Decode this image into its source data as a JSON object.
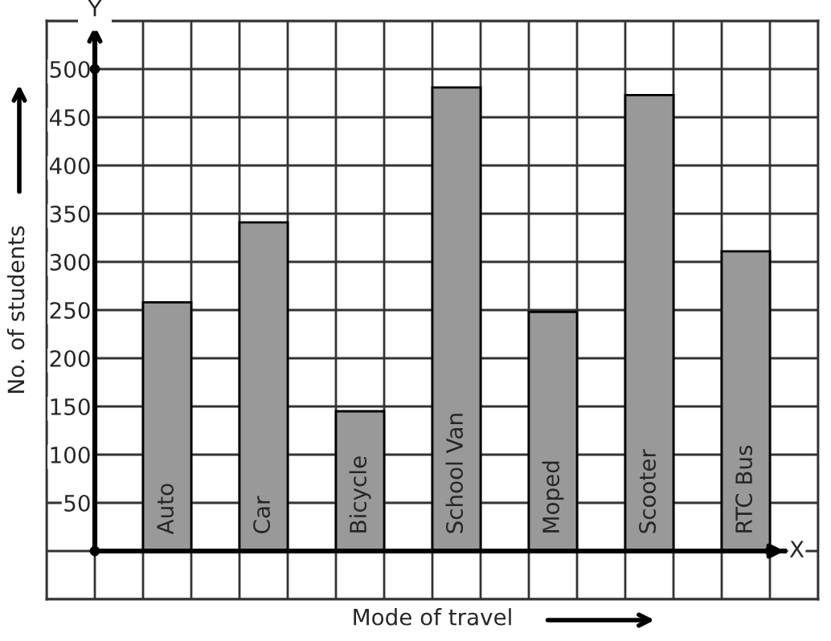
{
  "chart_data": {
    "type": "bar",
    "xlabel": "Mode of travel",
    "ylabel": "No. of students",
    "categories": [
      "Auto",
      "Car",
      "Bicycle",
      "School Van",
      "Moped",
      "Scooter",
      "RTC Bus"
    ],
    "values": [
      258,
      341,
      145,
      481,
      248,
      473,
      311
    ],
    "color": "#999999",
    "ylim": [
      -50,
      550
    ],
    "yticks": [
      {
        "value": 0,
        "label": null
      },
      50,
      100,
      150,
      200,
      250,
      300,
      350,
      400,
      450,
      500
    ],
    "annotations": [
      "Y",
      "X"
    ],
    "grid": true
  }
}
